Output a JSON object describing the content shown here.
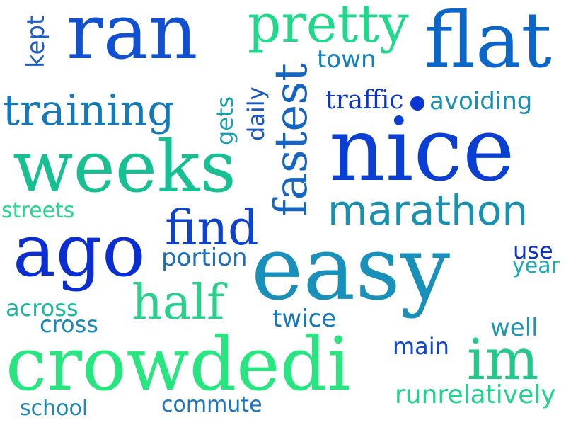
{
  "words": {
    "ran": {
      "text": "ran",
      "color": "#1150d0"
    },
    "pretty": {
      "text": "pretty",
      "color": "#1fd98a"
    },
    "flat": {
      "text": "flat",
      "color": "#0a66c9"
    },
    "kept": {
      "text": "kept",
      "color": "#1a5bc4"
    },
    "town": {
      "text": "town",
      "color": "#1480c0"
    },
    "training": {
      "text": "training",
      "color": "#1478b9"
    },
    "gets": {
      "text": "gets",
      "color": "#1a9fb0"
    },
    "daily": {
      "text": "daily",
      "color": "#1757c6"
    },
    "fastest": {
      "text": "fastest",
      "color": "#1565c4"
    },
    "traffic": {
      "text": "traffic",
      "color": "#0a35c8"
    },
    "avoiding": {
      "text": "avoiding",
      "color": "#1a8fb6"
    },
    "nice": {
      "text": "nice",
      "color": "#0a3fd2"
    },
    "weeks": {
      "text": "weeks",
      "color": "#18bf92"
    },
    "streets": {
      "text": "streets",
      "color": "#22d98e"
    },
    "marathon": {
      "text": "marathon",
      "color": "#1890b0"
    },
    "find": {
      "text": "find",
      "color": "#0d42cc"
    },
    "ago": {
      "text": "ago",
      "color": "#0a2ecf"
    },
    "portion": {
      "text": "portion",
      "color": "#1b6fbd"
    },
    "easy": {
      "text": "easy",
      "color": "#1890b9"
    },
    "use": {
      "text": "use",
      "color": "#0d33cc"
    },
    "year": {
      "text": "year",
      "color": "#1ba9b2"
    },
    "half": {
      "text": "half",
      "color": "#29cf8a"
    },
    "across": {
      "text": "across",
      "color": "#1cb79e"
    },
    "cross": {
      "text": "cross",
      "color": "#1a88b6"
    },
    "twice": {
      "text": "twice",
      "color": "#1278bf"
    },
    "well": {
      "text": "well",
      "color": "#1c96b4"
    },
    "crowdedi": {
      "text": "crowdedi",
      "color": "#28e67f"
    },
    "main": {
      "text": "main",
      "color": "#1045cd"
    },
    "im": {
      "text": "im",
      "color": "#22c98b"
    },
    "runrelatively": {
      "text": "runrelatively",
      "color": "#1fd38c"
    },
    "school": {
      "text": "school",
      "color": "#1c88b5"
    },
    "commute": {
      "text": "commute",
      "color": "#1a76c0"
    }
  }
}
